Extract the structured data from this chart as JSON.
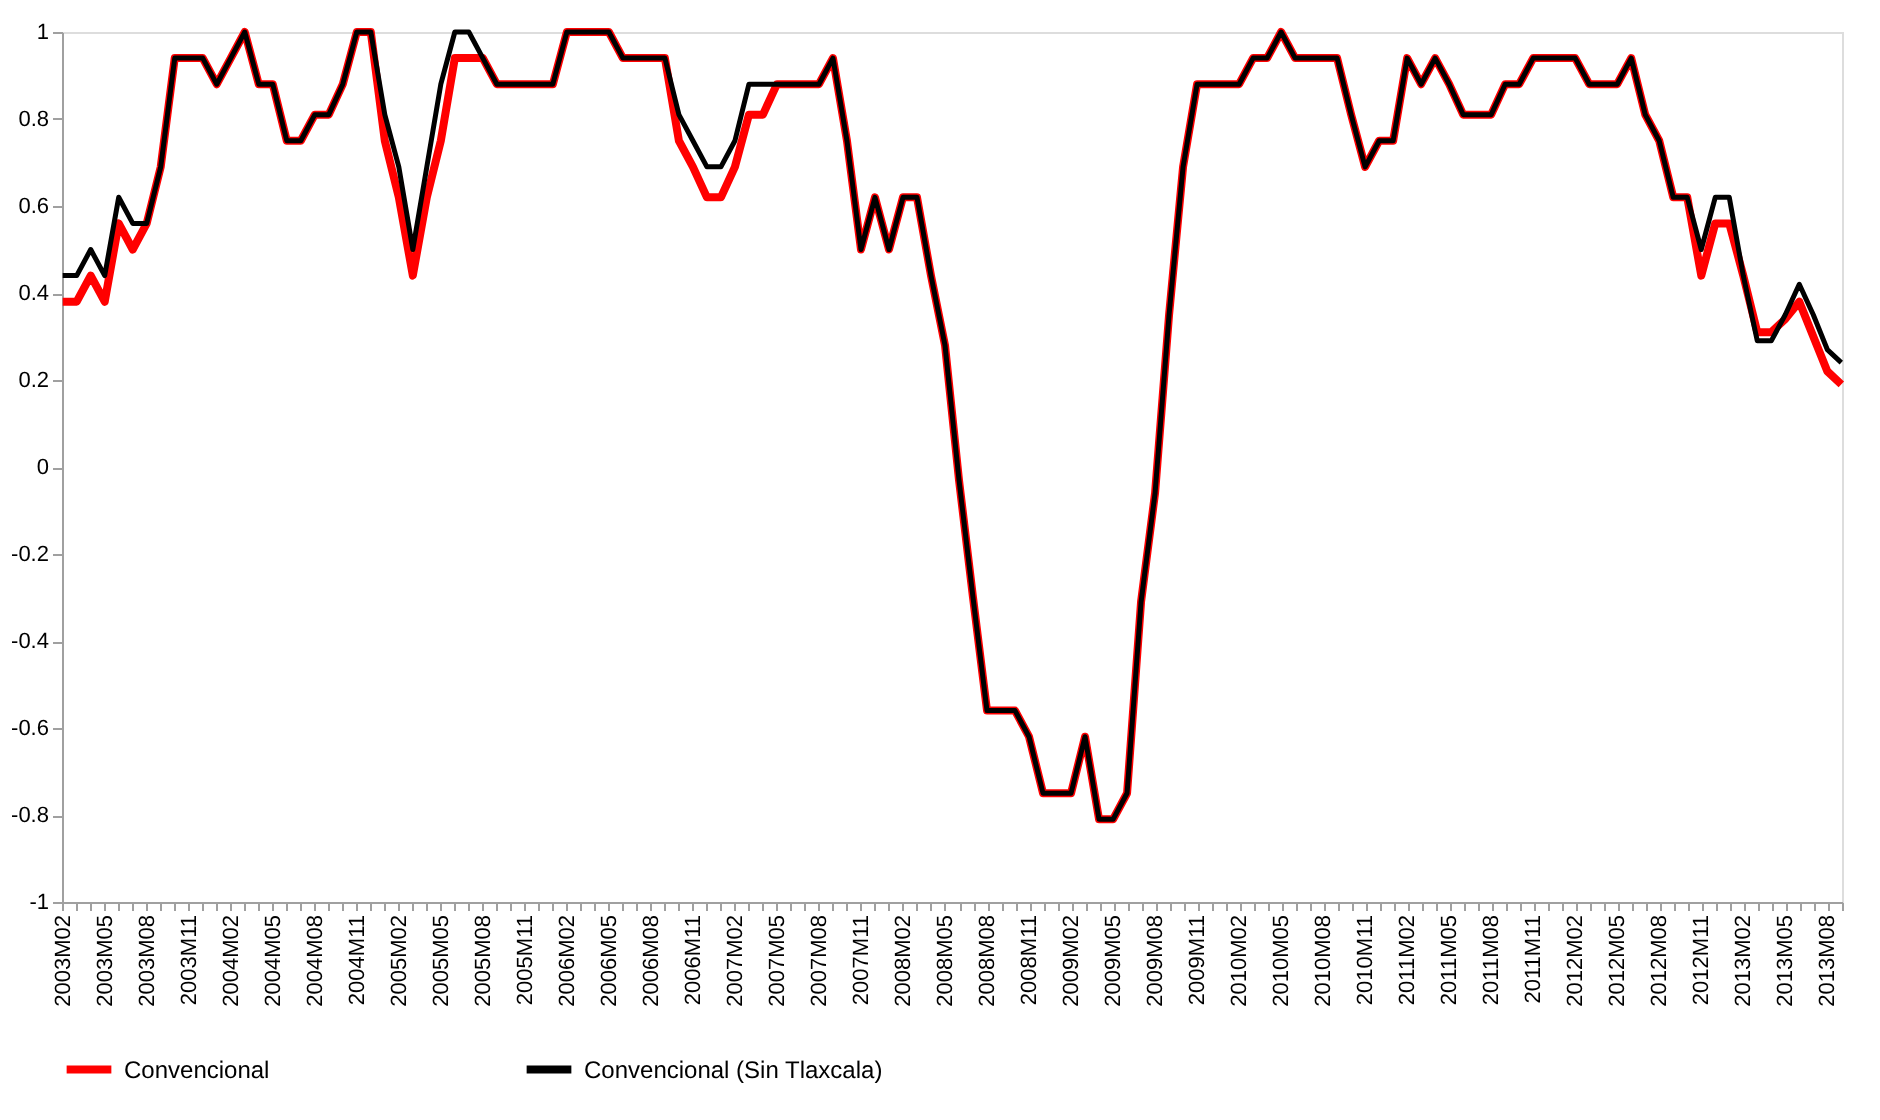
{
  "chart_data": {
    "type": "line",
    "categories": [
      "2003M02",
      null,
      null,
      "2003M05",
      null,
      null,
      "2003M08",
      null,
      null,
      "2003M11",
      null,
      null,
      "2004M02",
      null,
      null,
      "2004M05",
      null,
      null,
      "2004M08",
      null,
      null,
      "2004M11",
      null,
      null,
      "2005M02",
      null,
      null,
      "2005M05",
      null,
      null,
      "2005M08",
      null,
      null,
      "2005M11",
      null,
      null,
      "2006M02",
      null,
      null,
      "2006M05",
      null,
      null,
      "2006M08",
      null,
      null,
      "2006M11",
      null,
      null,
      "2007M02",
      null,
      null,
      "2007M05",
      null,
      null,
      "2007M08",
      null,
      null,
      "2007M11",
      null,
      null,
      "2008M02",
      null,
      null,
      "2008M05",
      null,
      null,
      "2008M08",
      null,
      null,
      "2008M11",
      null,
      null,
      "2009M02",
      null,
      null,
      "2009M05",
      null,
      null,
      "2009M08",
      null,
      null,
      "2009M11",
      null,
      null,
      "2010M02",
      null,
      null,
      "2010M05",
      null,
      null,
      "2010M08",
      null,
      null,
      "2010M11",
      null,
      null,
      "2011M02",
      null,
      null,
      "2011M05",
      null,
      null,
      "2011M08",
      null,
      null,
      "2011M11",
      null,
      null,
      "2012M02",
      null,
      null,
      "2012M05",
      null,
      null,
      "2012M08",
      null,
      null,
      "2012M11",
      null,
      null,
      "2013M02",
      null,
      null,
      "2013M05",
      null,
      null,
      "2013M08",
      null
    ],
    "series": [
      {
        "name": "Convencional",
        "color": "#ff0000",
        "values": [
          0.38,
          0.38,
          0.44,
          0.38,
          0.56,
          0.5,
          0.56,
          0.69,
          0.94,
          0.94,
          0.94,
          0.88,
          0.94,
          1,
          0.88,
          0.88,
          0.75,
          0.75,
          0.81,
          0.81,
          0.88,
          1,
          1,
          0.75,
          0.62,
          0.44,
          0.62,
          0.75,
          0.94,
          0.94,
          0.94,
          0.88,
          0.88,
          0.88,
          0.88,
          0.88,
          1,
          1,
          1,
          1,
          0.94,
          0.94,
          0.94,
          0.94,
          0.75,
          0.69,
          0.62,
          0.62,
          0.69,
          0.81,
          0.81,
          0.88,
          0.88,
          0.88,
          0.88,
          0.94,
          0.75,
          0.5,
          0.62,
          0.5,
          0.62,
          0.62,
          0.44,
          0.28,
          -0.03,
          -0.3,
          -0.56,
          -0.56,
          -0.56,
          -0.62,
          -0.75,
          -0.75,
          -0.75,
          -0.62,
          -0.81,
          -0.81,
          -0.75,
          -0.31,
          -0.06,
          0.35,
          0.69,
          0.88,
          0.88,
          0.88,
          0.88,
          0.94,
          0.94,
          1,
          0.94,
          0.94,
          0.94,
          0.94,
          0.81,
          0.69,
          0.75,
          0.75,
          0.94,
          0.88,
          0.94,
          0.88,
          0.81,
          0.81,
          0.81,
          0.88,
          0.88,
          0.94,
          0.94,
          0.94,
          0.94,
          0.88,
          0.88,
          0.88,
          0.94,
          0.81,
          0.75,
          0.62,
          0.62,
          0.44,
          0.56,
          0.56,
          0.44,
          0.31,
          0.31,
          0.34,
          0.38,
          0.3,
          0.22,
          0.19
        ]
      },
      {
        "name": "Convencional (Sin Tlaxcala)",
        "color": "#000000",
        "values": [
          0.44,
          0.44,
          0.5,
          0.44,
          0.62,
          0.56,
          0.56,
          0.69,
          0.94,
          0.94,
          0.94,
          0.88,
          0.94,
          1,
          0.88,
          0.88,
          0.75,
          0.75,
          0.81,
          0.81,
          0.88,
          1,
          1,
          0.81,
          0.69,
          0.5,
          0.69,
          0.88,
          1,
          1,
          0.94,
          0.88,
          0.88,
          0.88,
          0.88,
          0.88,
          1,
          1,
          1,
          1,
          0.94,
          0.94,
          0.94,
          0.94,
          0.81,
          0.75,
          0.69,
          0.69,
          0.75,
          0.88,
          0.88,
          0.88,
          0.88,
          0.88,
          0.88,
          0.94,
          0.75,
          0.5,
          0.62,
          0.5,
          0.62,
          0.62,
          0.44,
          0.28,
          -0.03,
          -0.3,
          -0.56,
          -0.56,
          -0.56,
          -0.62,
          -0.75,
          -0.75,
          -0.75,
          -0.62,
          -0.81,
          -0.81,
          -0.75,
          -0.31,
          -0.06,
          0.35,
          0.69,
          0.88,
          0.88,
          0.88,
          0.88,
          0.94,
          0.94,
          1,
          0.94,
          0.94,
          0.94,
          0.94,
          0.81,
          0.69,
          0.75,
          0.75,
          0.94,
          0.88,
          0.94,
          0.88,
          0.81,
          0.81,
          0.81,
          0.88,
          0.88,
          0.94,
          0.94,
          0.94,
          0.94,
          0.88,
          0.88,
          0.88,
          0.94,
          0.81,
          0.75,
          0.62,
          0.62,
          0.5,
          0.62,
          0.62,
          0.44,
          0.29,
          0.29,
          0.35,
          0.42,
          0.35,
          0.27,
          0.24
        ]
      }
    ],
    "ylim": [
      -1,
      1
    ],
    "yticks": [
      -1,
      -0.8,
      -0.6,
      -0.4,
      -0.2,
      0,
      0.2,
      0.4,
      0.6,
      0.8,
      1
    ],
    "legend": "bottom"
  }
}
